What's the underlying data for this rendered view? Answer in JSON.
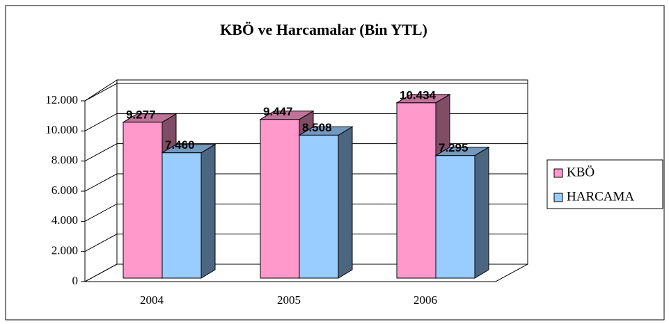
{
  "chart_data": {
    "type": "bar3d",
    "title": "KBÖ ve Harcamalar (Bin YTL)",
    "categories": [
      "2004",
      "2005",
      "2006"
    ],
    "series": [
      {
        "name": "KBÖ",
        "color": "#ff99cc",
        "values": [
          9277,
          9447,
          10434
        ],
        "value_labels": [
          "9.277",
          "9.447",
          "10.434"
        ]
      },
      {
        "name": "HARCAMA",
        "color": "#99ccff",
        "values": [
          7460,
          8508,
          7295
        ],
        "value_labels": [
          "7.460",
          "8.508",
          "7.295"
        ]
      }
    ],
    "ylim": [
      0,
      12000
    ],
    "yticks": [
      0,
      {
        "value": 2000,
        "label": "2.000"
      },
      {
        "value": 4000,
        "label": "4.000"
      },
      {
        "value": 6000,
        "label": "6.000"
      },
      {
        "value": 8000,
        "label": "8.000"
      },
      {
        "value": 10000,
        "label": "10.000"
      },
      {
        "value": 12000,
        "label": "12.000"
      }
    ],
    "grid": true,
    "legend": "right"
  }
}
